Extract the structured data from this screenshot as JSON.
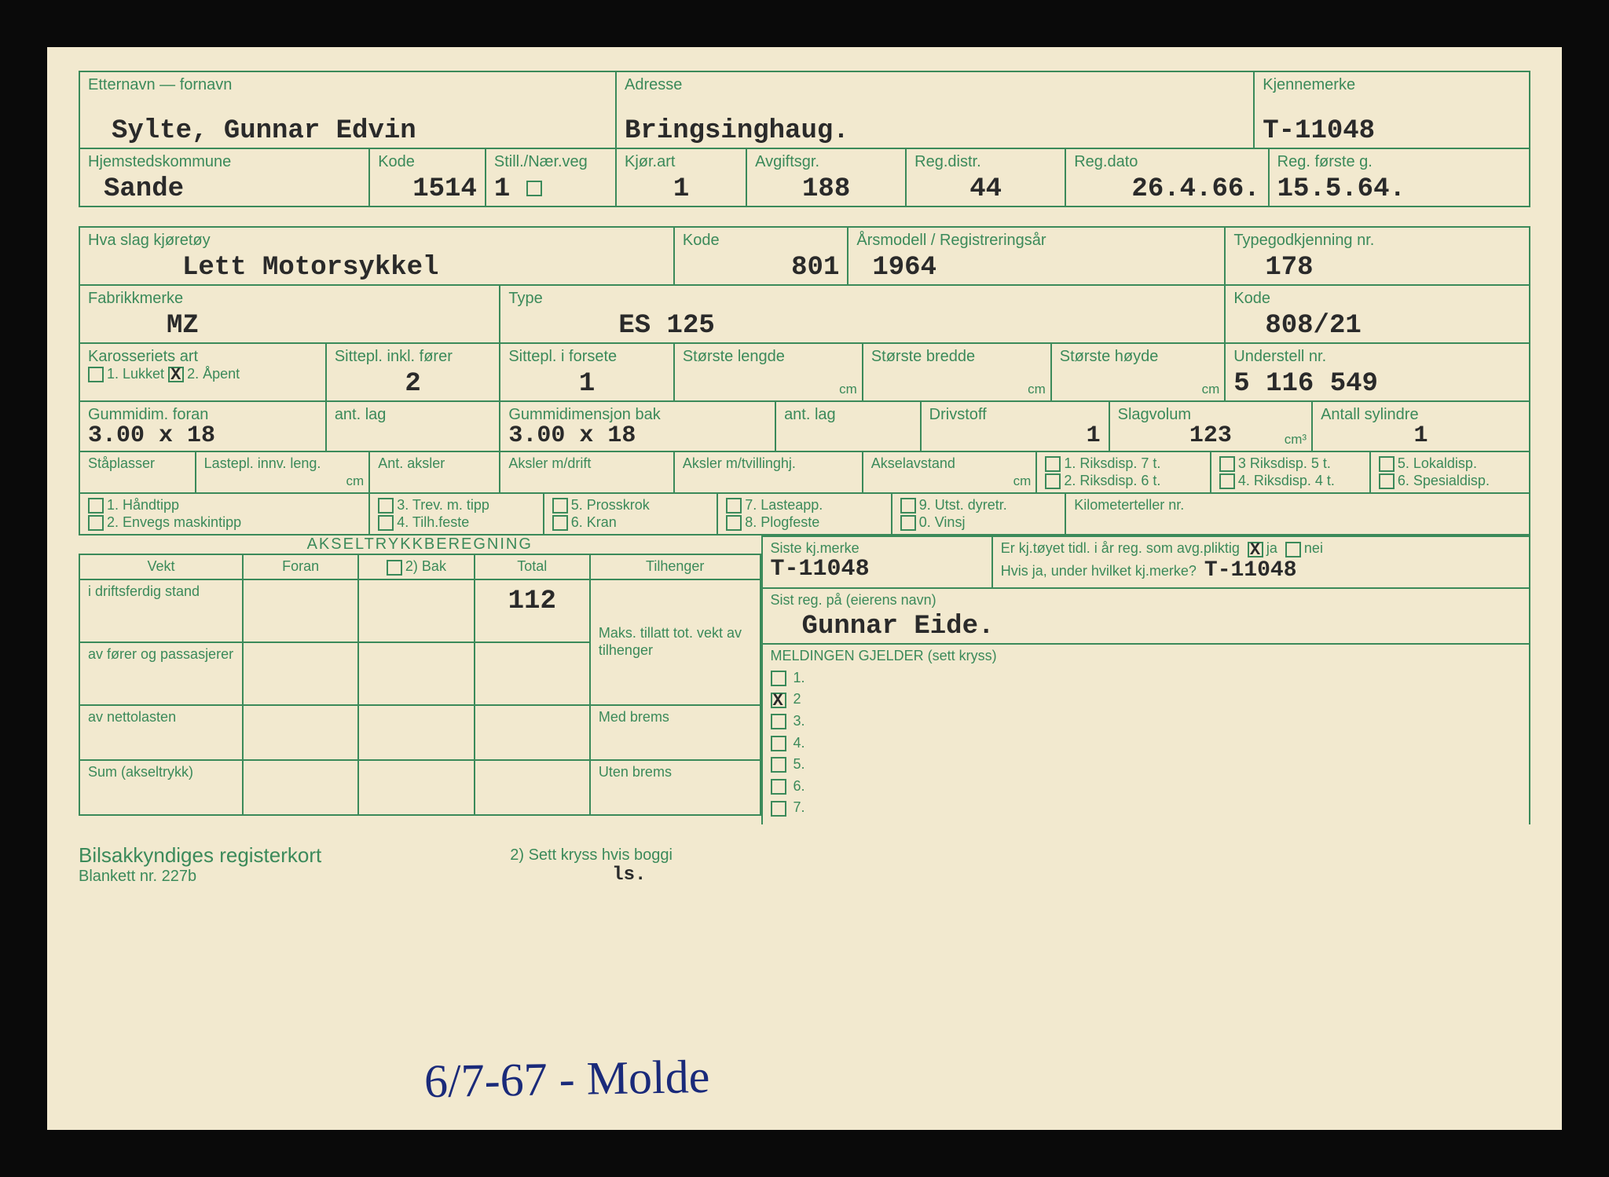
{
  "colors": {
    "paper": "#f2e9cf",
    "formLine": "#3b8a5a",
    "labelText": "#3b8a5a",
    "typedText": "#2a2a2a",
    "inkBlue": "#1a2a7a",
    "frame": "#0a0a0a"
  },
  "typography": {
    "labelFont": "Arial",
    "labelSizePt": 15,
    "valueFont": "Courier New",
    "valueSizePt": 26
  },
  "row1": {
    "etternavn_label": "Etternavn — fornavn",
    "etternavn_value": "Sylte, Gunnar Edvin",
    "adresse_label": "Adresse",
    "adresse_value": "Bringsinghaug.",
    "kjennemerke_label": "Kjennemerke",
    "kjennemerke_value": "T-11048"
  },
  "row2": {
    "hjemsted_label": "Hjemstedskommune",
    "hjemsted_value": "Sande",
    "kode_label": "Kode",
    "kode_value": "1514",
    "still_label": "Still./Nær.veg",
    "still_value": "1",
    "kjorart_label": "Kjør.art",
    "kjorart_value": "1",
    "avgiftsgr_label": "Avgiftsgr.",
    "avgiftsgr_value": "188",
    "regdistr_label": "Reg.distr.",
    "regdistr_value": "44",
    "regdato_label": "Reg.dato",
    "regdato_value": "26.4.66.",
    "regforste_label": "Reg. første g.",
    "regforste_value": "15.5.64."
  },
  "row3": {
    "hvaslag_label": "Hva slag kjøretøy",
    "hvaslag_value": "Lett Motorsykkel",
    "kode_label": "Kode",
    "kode_value": "801",
    "arsmodell_label": "Årsmodell / Registreringsår",
    "arsmodell_value": "1964",
    "typegod_label": "Typegodkjenning nr.",
    "typegod_value": "178"
  },
  "row4": {
    "fabrikk_label": "Fabrikkmerke",
    "fabrikk_value": "MZ",
    "type_label": "Type",
    "type_value": "ES 125",
    "kode_label": "Kode",
    "kode_value": "808/21"
  },
  "row5": {
    "karosseri_label": "Karosseriets art",
    "karosseri_opt1": "1. Lukket",
    "karosseri_opt2": "2. Åpent",
    "karosseri_checked1": true,
    "sittepl_label": "Sittepl. inkl. fører",
    "sittepl_value": "2",
    "sitteplfor_label": "Sittepl. i forsete",
    "sitteplfor_value": "1",
    "lengde_label": "Største lengde",
    "bredde_label": "Største bredde",
    "hoyde_label": "Største høyde",
    "cm": "cm",
    "understell_label": "Understell nr.",
    "understell_value": "5 116  549"
  },
  "row6": {
    "gummiforan_label": "Gummidim. foran",
    "gummiforan_value": "3.00 x 18",
    "antlag1_label": "ant. lag",
    "gummibak_label": "Gummidimensjon bak",
    "gummibak_value": "3.00 x 18",
    "antlag2_label": "ant. lag",
    "drivstoff_label": "Drivstoff",
    "drivstoff_value": "1",
    "slagvolum_label": "Slagvolum",
    "slagvolum_value": "123",
    "cm3": "cm³",
    "sylindre_label": "Antall sylindre",
    "sylindre_value": "1"
  },
  "row7": {
    "staplasser_label": "Ståplasser",
    "lastepl_label": "Lastepl. innv. leng.",
    "cm": "cm",
    "antaksler_label": "Ant. aksler",
    "akslerdrift_label": "Aksler m/drift",
    "akslertvill_label": "Aksler m/tvillinghj.",
    "akselavstand_label": "Akselavstand",
    "riksdisp": {
      "r7": "1. Riksdisp. 7 t.",
      "r6": "2. Riksdisp. 6 t.",
      "r5": "3 Riksdisp. 5 t.",
      "r4": "4. Riksdisp. 4 t.",
      "l5": "5. Lokaldisp.",
      "s6": "6. Spesialdisp."
    }
  },
  "row8": {
    "h1": "1. Håndtipp",
    "h2": "2. Envegs maskintipp",
    "h3": "3. Trev. m. tipp",
    "h4": "4. Tilh.feste",
    "h5": "5. Prosskrok",
    "h6": "6. Kran",
    "h7": "7. Lasteapp.",
    "h8": "8. Plogfeste",
    "h9": "9. Utst. dyretr.",
    "h0": "0. Vinsj",
    "km_label": "Kilometerteller nr."
  },
  "akseltrykk": {
    "title": "AKSELTRYKKBEREGNING",
    "vekt": "Vekt",
    "foran": "Foran",
    "bak": "2) Bak",
    "total": "Total",
    "tilhenger": "Tilhenger",
    "driftstand": "i driftsferdig stand",
    "driftstand_total": "112",
    "forerpass": "av fører og passasjerer",
    "nettolast": "av nettolasten",
    "sum": "Sum (akseltrykk)",
    "maks_tillatt": "Maks. tillatt tot. vekt av tilhenger",
    "med_brems": "Med brems",
    "uten_brems": "Uten brems"
  },
  "right_block": {
    "siste_label": "Siste kj.merke",
    "siste_value": "T-11048",
    "tidl_label": "Er kj.tøyet tidl. i år reg. som avg.pliktig",
    "tidl_ja": "ja",
    "tidl_nei": "nei",
    "tidl_ja_checked": true,
    "hvis_label": "Hvis ja, under hvilket kj.merke?",
    "hvis_value": "T-11048",
    "sistreg_label": "Sist reg. på (eierens navn)",
    "sistreg_value": "Gunnar Eide.",
    "meldingen_label": "MELDINGEN GJELDER (sett kryss)",
    "opts": [
      "1.",
      "2",
      "3.",
      "4.",
      "5.",
      "6.",
      "7."
    ],
    "checked_idx": 1
  },
  "footer": {
    "title": "Bilsakkyndiges registerkort",
    "sub": "Blankett nr. 227b",
    "note": "2) Sett kryss hvis boggi",
    "handwriting": "6/7-67 - Molde",
    "ls": "ls."
  }
}
